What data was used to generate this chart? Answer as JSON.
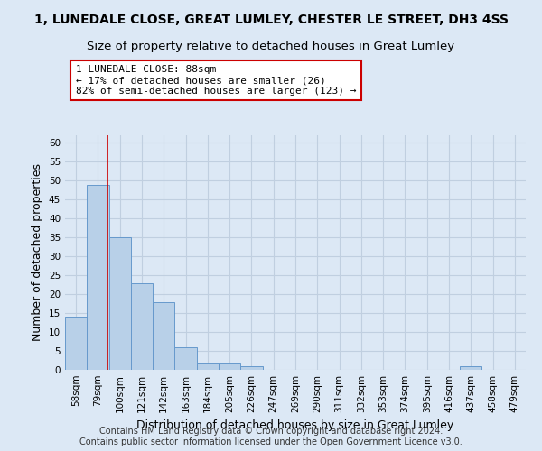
{
  "title": "1, LUNEDALE CLOSE, GREAT LUMLEY, CHESTER LE STREET, DH3 4SS",
  "subtitle": "Size of property relative to detached houses in Great Lumley",
  "xlabel": "Distribution of detached houses by size in Great Lumley",
  "ylabel": "Number of detached properties",
  "bar_labels": [
    "58sqm",
    "79sqm",
    "100sqm",
    "121sqm",
    "142sqm",
    "163sqm",
    "184sqm",
    "205sqm",
    "226sqm",
    "247sqm",
    "269sqm",
    "290sqm",
    "311sqm",
    "332sqm",
    "353sqm",
    "374sqm",
    "395sqm",
    "416sqm",
    "437sqm",
    "458sqm",
    "479sqm"
  ],
  "bar_values": [
    14,
    49,
    35,
    23,
    18,
    6,
    2,
    2,
    1,
    0,
    0,
    0,
    0,
    0,
    0,
    0,
    0,
    0,
    1,
    0,
    0
  ],
  "bar_color": "#b8d0e8",
  "bar_edge_color": "#6699cc",
  "ylim": [
    0,
    62
  ],
  "yticks": [
    0,
    5,
    10,
    15,
    20,
    25,
    30,
    35,
    40,
    45,
    50,
    55,
    60
  ],
  "property_line_x": 1.43,
  "property_line_color": "#cc0000",
  "annotation_line1": "1 LUNEDALE CLOSE: 88sqm",
  "annotation_line2": "← 17% of detached houses are smaller (26)",
  "annotation_line3": "82% of semi-detached houses are larger (123) →",
  "annotation_box_color": "#ffffff",
  "annotation_box_edge": "#cc0000",
  "footer_text": "Contains HM Land Registry data © Crown copyright and database right 2024.\nContains public sector information licensed under the Open Government Licence v3.0.",
  "bg_color": "#dce8f5",
  "plot_bg_color": "#dce8f5",
  "grid_color": "#c0cfe0",
  "title_fontsize": 10,
  "subtitle_fontsize": 9.5,
  "axis_label_fontsize": 9,
  "tick_fontsize": 7.5,
  "annotation_fontsize": 8,
  "footer_fontsize": 7
}
